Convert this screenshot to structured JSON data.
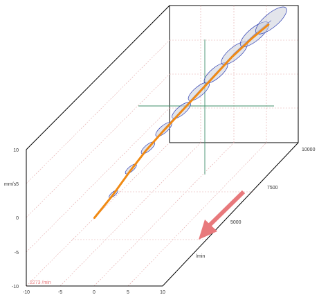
{
  "chart_data": {
    "type": "line",
    "title": "",
    "units": {
      "y": "mm/s",
      "z": "/min"
    },
    "x_ticks": [
      "-10",
      "-5",
      "0",
      "5",
      "10"
    ],
    "y_ticks": [
      "10",
      "5",
      "0",
      "-5",
      "-10"
    ],
    "z_ticks": [
      "5000",
      "7500",
      "10000"
    ],
    "corner_label": "2273 /min",
    "xlim": [
      -10,
      10
    ],
    "ylim": [
      -10,
      10
    ],
    "zlim": [
      2273,
      10000
    ],
    "grid": true,
    "series": [
      {
        "color": "#2e3fb4",
        "z": [
          2273,
          3000,
          3800,
          4500,
          5200,
          6000,
          6800,
          7500,
          8200,
          9000,
          9600
        ],
        "x": [
          0,
          0.8,
          1.2,
          1.8,
          2.2,
          2.6,
          3.0,
          3.6,
          4.4,
          5.2,
          6.0
        ],
        "y": [
          0,
          1.5,
          3.0,
          4.2,
          5.0,
          5.6,
          6.2,
          7.0,
          8.0,
          8.6,
          9.0
        ]
      },
      {
        "color": "#f08a14",
        "z": [
          2273,
          3000,
          3800,
          4500,
          5200,
          6000,
          6800,
          7500,
          8200,
          9000,
          9600
        ],
        "x": [
          0,
          0.6,
          1.0,
          1.5,
          2.0,
          2.4,
          2.8,
          3.4,
          4.0,
          4.8,
          5.6
        ],
        "y": [
          0,
          1.2,
          2.6,
          3.8,
          4.6,
          5.2,
          5.8,
          6.6,
          7.4,
          8.0,
          8.4
        ]
      }
    ]
  },
  "colors": {
    "arrow": "#e8797c",
    "crosshair": "#3f8f6a",
    "grid": "#e3a7a7"
  }
}
